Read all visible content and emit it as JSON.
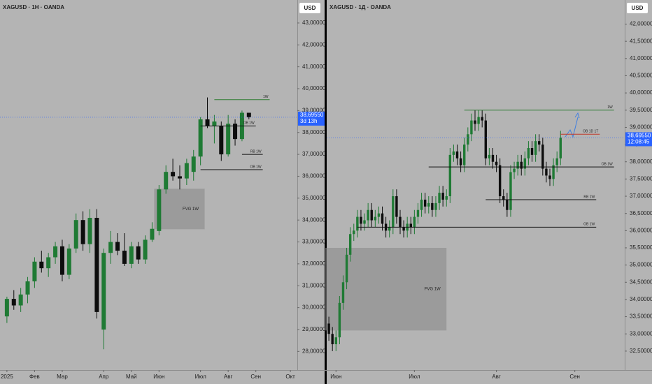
{
  "chart_data": [
    {
      "type": "candlestick",
      "title": "XAGUSD · 1H · OANDA",
      "currency": "USD",
      "x": [
        0,
        1,
        2,
        3,
        4,
        5,
        6,
        7,
        8,
        9,
        10,
        11,
        12,
        13,
        14,
        15,
        16,
        17,
        18,
        19,
        20,
        21,
        22,
        23,
        24,
        25,
        26,
        27,
        28,
        29,
        30,
        31,
        32,
        33,
        34,
        35
      ],
      "open": [
        29.6,
        30.4,
        30.1,
        30.6,
        31.2,
        32.1,
        31.8,
        32.3,
        32.8,
        31.5,
        32.7,
        34.0,
        32.9,
        34.1,
        29.0,
        32.5,
        33.0,
        32.6,
        32.0,
        32.8,
        32.2,
        33.1,
        33.5,
        35.4,
        36.2,
        36.0,
        35.9,
        36.2,
        36.9,
        38.6,
        38.3,
        38.3,
        37.0,
        38.4,
        37.7,
        38.9
      ],
      "high": [
        30.5,
        30.8,
        30.9,
        31.4,
        32.3,
        32.6,
        32.5,
        33.0,
        33.1,
        32.9,
        34.3,
        34.4,
        34.5,
        34.5,
        32.7,
        33.5,
        33.4,
        33.4,
        33.0,
        33.0,
        33.3,
        33.9,
        35.6,
        36.5,
        36.8,
        36.5,
        36.8,
        37.2,
        38.7,
        39.6,
        38.8,
        38.5,
        38.8,
        38.6,
        39.0,
        38.9
      ],
      "low": [
        29.3,
        29.9,
        29.8,
        30.2,
        30.9,
        31.6,
        31.4,
        32.0,
        31.2,
        31.3,
        32.5,
        32.6,
        32.5,
        29.5,
        28.1,
        32.0,
        32.4,
        31.9,
        31.8,
        32.0,
        32.0,
        33.0,
        33.3,
        35.2,
        35.8,
        35.4,
        35.6,
        35.8,
        36.5,
        38.2,
        37.5,
        36.7,
        36.9,
        37.4,
        37.6,
        38.6
      ],
      "close": [
        30.4,
        30.1,
        30.6,
        31.2,
        32.1,
        31.8,
        32.3,
        32.8,
        31.5,
        32.7,
        34.0,
        32.9,
        34.1,
        29.8,
        32.5,
        33.0,
        32.6,
        32.0,
        32.8,
        32.2,
        33.1,
        33.6,
        35.4,
        36.2,
        36.0,
        35.9,
        36.6,
        36.9,
        38.6,
        38.3,
        38.5,
        37.0,
        38.4,
        37.7,
        38.9,
        38.7
      ],
      "up_color": "#1f7a34",
      "down_color": "#0d0d0d",
      "xlim": [
        -1,
        42
      ],
      "ylim": [
        27.15,
        44.05
      ],
      "xticks": [
        {
          "value": 0,
          "label": "2025"
        },
        {
          "value": 4,
          "label": "Фев"
        },
        {
          "value": 8,
          "label": "Мар"
        },
        {
          "value": 14,
          "label": "Апр"
        },
        {
          "value": 18,
          "label": "Май"
        },
        {
          "value": 22,
          "label": "Июн"
        },
        {
          "value": 28,
          "label": "Июл"
        },
        {
          "value": 32,
          "label": "Авг"
        },
        {
          "value": 36,
          "label": "Сен"
        },
        {
          "value": 41,
          "label": "Окт"
        }
      ],
      "yticks": [
        {
          "value": 28,
          "label": "28,00000"
        },
        {
          "value": 29,
          "label": "29,00000"
        },
        {
          "value": 30,
          "label": "30,00000"
        },
        {
          "value": 31,
          "label": "31,00000"
        },
        {
          "value": 32,
          "label": "32,00000"
        },
        {
          "value": 33,
          "label": "33,00000"
        },
        {
          "value": 34,
          "label": "34,00000"
        },
        {
          "value": 35,
          "label": "35,00000"
        },
        {
          "value": 36,
          "label": "36,00000"
        },
        {
          "value": 37,
          "label": "37,00000"
        },
        {
          "value": 38,
          "label": "38,00000"
        },
        {
          "value": 39,
          "label": "39,00000"
        },
        {
          "value": 40,
          "label": "40,00000"
        },
        {
          "value": 41,
          "label": "41,00000"
        },
        {
          "value": 42,
          "label": "42,00000"
        },
        {
          "value": 43,
          "label": "43,00000"
        }
      ],
      "last_price": {
        "value": 38.6955,
        "label": "38,69550",
        "timer": "3d 13h"
      },
      "levels": [
        {
          "label": "1W",
          "value": 39.5,
          "from": 30,
          "to": 38,
          "color": "#2e7d32"
        },
        {
          "label": "OB 1W",
          "value": 38.3,
          "from": 28,
          "to": 36,
          "color": "#111111"
        },
        {
          "label": "RB 1W",
          "value": 37.0,
          "from": 34,
          "to": 37,
          "color": "#111111"
        },
        {
          "label": "OB 1W",
          "value": 36.3,
          "from": 28,
          "to": 37,
          "color": "#111111"
        }
      ],
      "zones": [
        {
          "label": "FVG 1W",
          "top": 35.43,
          "bottom": 33.58,
          "from": 21.3,
          "to": 28.6
        }
      ]
    },
    {
      "type": "candlestick",
      "title": "XAGUSD · 1Д · OANDA",
      "currency": "USD",
      "x": [
        0,
        1,
        2,
        3,
        4,
        5,
        6,
        7,
        8,
        9,
        10,
        11,
        12,
        13,
        14,
        15,
        16,
        17,
        18,
        19,
        20,
        21,
        22,
        23,
        24,
        25,
        26,
        27,
        28,
        29,
        30,
        31,
        32,
        33,
        34,
        35,
        36,
        37,
        38,
        39,
        40,
        41,
        42,
        43,
        44,
        45,
        46,
        47,
        48,
        49,
        50,
        51,
        52,
        53,
        54,
        55,
        56,
        57,
        58,
        59,
        60,
        61,
        62,
        63,
        64,
        65
      ],
      "open": [
        33.3,
        33.0,
        32.7,
        32.9,
        33.9,
        34.5,
        35.3,
        35.9,
        36.0,
        36.4,
        36.2,
        36.3,
        36.6,
        36.3,
        36.4,
        36.5,
        36.2,
        36.0,
        36.1,
        37.0,
        36.4,
        36.1,
        36.0,
        36.2,
        36.1,
        36.4,
        36.6,
        36.9,
        36.7,
        36.8,
        36.6,
        36.8,
        37.1,
        36.9,
        37.0,
        38.2,
        38.3,
        38.1,
        37.9,
        38.5,
        38.8,
        39.2,
        39.1,
        39.3,
        39.2,
        38.1,
        38.2,
        38.0,
        37.9,
        37.0,
        36.9,
        36.6,
        37.7,
        37.8,
        38.0,
        37.8,
        38.1,
        38.4,
        38.2,
        38.6,
        38.5,
        37.8,
        37.6,
        37.5,
        37.9,
        38.1
      ],
      "high": [
        33.5,
        33.2,
        33.1,
        34.1,
        34.7,
        35.5,
        36.1,
        36.2,
        36.6,
        36.6,
        36.5,
        36.8,
        36.8,
        36.6,
        36.7,
        36.7,
        36.4,
        36.3,
        37.2,
        37.2,
        36.6,
        36.3,
        36.4,
        36.4,
        36.6,
        36.8,
        37.1,
        37.1,
        37.0,
        37.0,
        37.0,
        37.3,
        37.3,
        37.2,
        38.4,
        38.5,
        38.5,
        38.3,
        38.7,
        39.0,
        39.4,
        39.5,
        39.5,
        39.5,
        39.4,
        38.4,
        38.4,
        38.2,
        38.1,
        37.2,
        37.1,
        37.9,
        38.0,
        38.2,
        38.2,
        38.3,
        38.6,
        38.6,
        38.8,
        38.8,
        38.7,
        38.0,
        37.8,
        38.1,
        38.3,
        38.9
      ],
      "low": [
        32.8,
        32.5,
        32.5,
        32.7,
        33.7,
        34.3,
        35.1,
        35.7,
        35.8,
        36.0,
        36.0,
        36.1,
        36.1,
        36.1,
        36.2,
        36.0,
        35.8,
        35.8,
        35.9,
        36.2,
        35.9,
        35.8,
        35.8,
        35.9,
        35.9,
        36.2,
        36.4,
        36.5,
        36.5,
        36.4,
        36.4,
        36.6,
        36.7,
        36.7,
        36.8,
        38.0,
        37.9,
        37.7,
        37.7,
        38.3,
        38.6,
        38.9,
        38.9,
        39.0,
        37.9,
        37.9,
        37.8,
        37.7,
        36.8,
        36.7,
        36.4,
        36.4,
        37.5,
        37.6,
        37.6,
        37.6,
        37.9,
        38.0,
        38.0,
        38.3,
        37.6,
        37.4,
        37.3,
        37.3,
        37.7,
        37.9
      ],
      "close": [
        33.0,
        32.7,
        32.9,
        33.9,
        34.5,
        35.3,
        35.9,
        36.0,
        36.4,
        36.2,
        36.3,
        36.6,
        36.3,
        36.4,
        36.5,
        36.2,
        36.0,
        36.1,
        37.0,
        36.4,
        36.1,
        36.0,
        36.2,
        36.1,
        36.4,
        36.6,
        36.9,
        36.7,
        36.8,
        36.6,
        36.8,
        37.1,
        36.9,
        37.0,
        38.2,
        38.3,
        38.1,
        37.9,
        38.5,
        38.8,
        39.2,
        39.1,
        39.3,
        39.2,
        38.1,
        38.2,
        38.0,
        37.9,
        37.0,
        36.9,
        36.6,
        37.7,
        37.8,
        38.0,
        37.8,
        38.1,
        38.4,
        38.2,
        38.6,
        38.5,
        37.8,
        37.6,
        37.5,
        37.9,
        38.1,
        38.7
      ],
      "up_color": "#1f7a34",
      "down_color": "#0d0d0d",
      "xlim": [
        -1,
        83
      ],
      "ylim": [
        31.95,
        42.7
      ],
      "xticks": [
        {
          "value": 2,
          "label": "Июн"
        },
        {
          "value": 24,
          "label": "Июл"
        },
        {
          "value": 47,
          "label": "Авг"
        },
        {
          "value": 69,
          "label": "Сен"
        }
      ],
      "yticks": [
        {
          "value": 32.5,
          "label": "32,50000"
        },
        {
          "value": 33,
          "label": "33,00000"
        },
        {
          "value": 33.5,
          "label": "33,50000"
        },
        {
          "value": 34,
          "label": "34,00000"
        },
        {
          "value": 34.5,
          "label": "34,50000"
        },
        {
          "value": 35,
          "label": "35,00000"
        },
        {
          "value": 35.5,
          "label": "35,50000"
        },
        {
          "value": 36,
          "label": "36,00000"
        },
        {
          "value": 36.5,
          "label": "36,50000"
        },
        {
          "value": 37,
          "label": "37,00000"
        },
        {
          "value": 37.5,
          "label": "37,50000"
        },
        {
          "value": 38,
          "label": "38,00000"
        },
        {
          "value": 38.5,
          "label": "38,50000"
        },
        {
          "value": 39,
          "label": "39,00000"
        },
        {
          "value": 39.5,
          "label": "39,50000"
        },
        {
          "value": 40,
          "label": "40,00000"
        },
        {
          "value": 40.5,
          "label": "40,50000"
        },
        {
          "value": 41,
          "label": "41,00000"
        },
        {
          "value": 41.5,
          "label": "41,50000"
        },
        {
          "value": 42,
          "label": "42,00000"
        }
      ],
      "last_price": {
        "value": 38.6955,
        "label": "38,69550",
        "timer": "12:08:45"
      },
      "levels": [
        {
          "label": "1W",
          "value": 39.5,
          "from": 38,
          "to": 80,
          "color": "#2e7d32"
        },
        {
          "label": "OB 1D 1T",
          "value": 38.8,
          "from": 65,
          "to": 76,
          "color": "#c0392b"
        },
        {
          "label": "OB 1W",
          "value": 37.85,
          "from": 28,
          "to": 80,
          "color": "#111111"
        },
        {
          "label": "RB 1W",
          "value": 36.9,
          "from": 44,
          "to": 75,
          "color": "#111111"
        },
        {
          "label": "OB 1W",
          "value": 36.1,
          "from": 8,
          "to": 75,
          "color": "#111111"
        }
      ],
      "zones": [
        {
          "label": "FVG 1W",
          "top": 35.5,
          "bottom": 33.1,
          "from": -1,
          "to": 33
        }
      ]
    }
  ]
}
